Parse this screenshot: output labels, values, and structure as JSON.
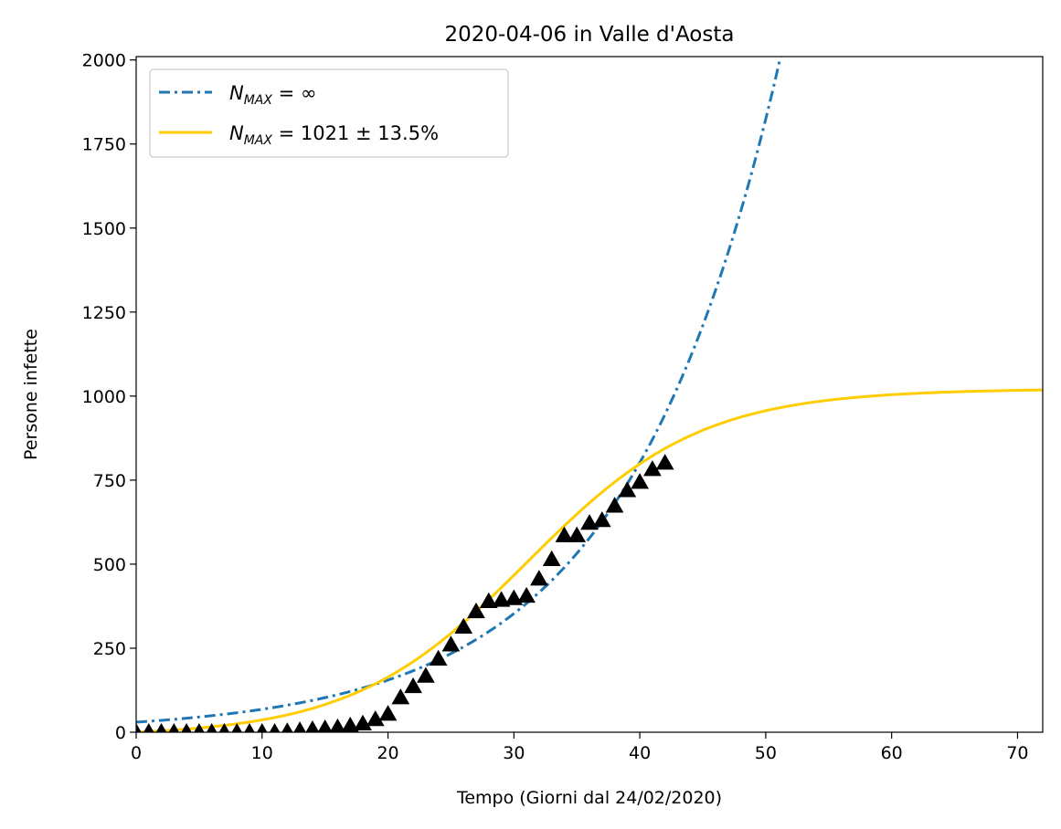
{
  "chart_data": {
    "type": "line",
    "title": "2020-04-06 in Valle d'Aosta",
    "xlabel": "Tempo (Giorni dal 24/02/2020)",
    "ylabel": "Persone infette",
    "xlim": [
      0,
      72
    ],
    "ylim": [
      0,
      2010
    ],
    "xticks": [
      0,
      10,
      20,
      30,
      40,
      50,
      60,
      70
    ],
    "yticks": [
      0,
      250,
      500,
      750,
      1000,
      1250,
      1500,
      1750,
      2000
    ],
    "grid": false,
    "legend_position": "upper-left",
    "series": [
      {
        "name": "N_MAX = ∞",
        "style": "dash-dot",
        "color": "#1f77b4",
        "model": "exponential",
        "x": [
          0,
          5,
          10,
          15,
          20,
          25,
          30,
          35,
          40,
          45,
          50,
          52
        ],
        "y": [
          30,
          46,
          68,
          103,
          156,
          236,
          359,
          540,
          820,
          1240,
          1870,
          2150
        ]
      },
      {
        "name": "N_MAX = 1021 ± 13.5%",
        "style": "solid",
        "color": "#ffcc00",
        "model": "logistic",
        "x": [
          0,
          10,
          15,
          18,
          20,
          22,
          25,
          28,
          30,
          32,
          35,
          38,
          40,
          42,
          45,
          50,
          55,
          60,
          65,
          72
        ],
        "y": [
          0,
          3,
          14,
          38,
          72,
          125,
          250,
          385,
          470,
          545,
          630,
          700,
          740,
          775,
          830,
          905,
          950,
          978,
          995,
          1010
        ]
      },
      {
        "name": "data",
        "style": "marker-triangle",
        "color": "#000000",
        "x": [
          0,
          1,
          2,
          3,
          4,
          5,
          6,
          7,
          8,
          9,
          10,
          11,
          12,
          13,
          14,
          15,
          16,
          17,
          18,
          19,
          20,
          21,
          22,
          23,
          24,
          25,
          26,
          27,
          28,
          29,
          30,
          31,
          32,
          33,
          34,
          35,
          36,
          37,
          38,
          39,
          40,
          41,
          42
        ],
        "y": [
          0,
          0,
          0,
          0,
          0,
          0,
          0,
          0,
          0,
          0,
          0,
          0,
          2,
          5,
          8,
          11,
          14,
          19,
          25,
          38,
          54,
          103,
          136,
          167,
          218,
          260,
          313,
          359,
          389,
          393,
          398,
          405,
          456,
          514,
          585,
          585,
          622,
          630,
          673,
          719,
          744,
          782,
          801
        ]
      }
    ],
    "legend": {
      "entries": [
        {
          "main": "N",
          "sub": "MAX",
          "rest": " = ∞"
        },
        {
          "main": "N",
          "sub": "MAX",
          "rest": " = 1021 ± 13.5%"
        }
      ]
    }
  }
}
